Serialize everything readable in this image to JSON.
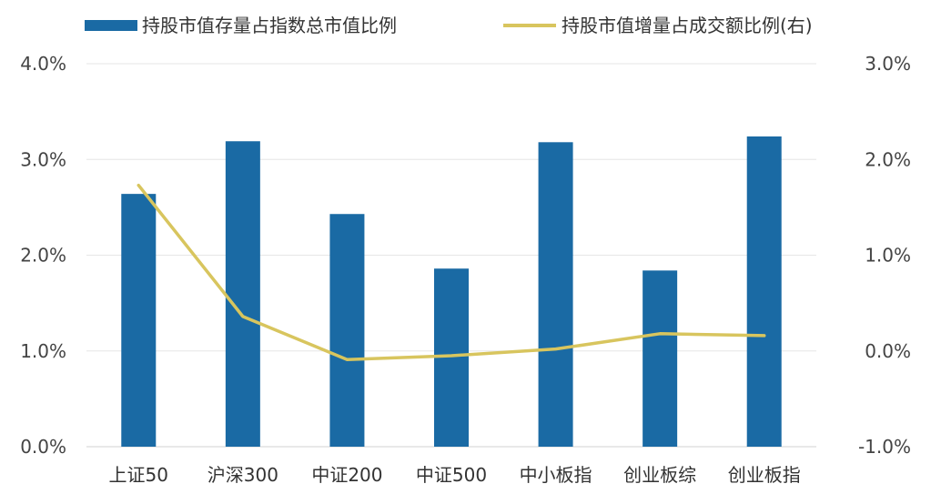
{
  "chart_data": {
    "type": "bar",
    "categories": [
      "上证50",
      "沪深300",
      "中证200",
      "中证500",
      "中小板指",
      "创业板综",
      "创业板指"
    ],
    "series": [
      {
        "name": "持股市值存量占指数总市值比例",
        "type": "bar",
        "axis": "left",
        "color": "#1a6aa4",
        "values": [
          0.0264,
          0.0319,
          0.0243,
          0.0186,
          0.0318,
          0.0184,
          0.0324
        ]
      },
      {
        "name": "持股市值增量占成交额比例(右)",
        "type": "line",
        "axis": "right",
        "color": "#d8c55e",
        "values": [
          0.0173,
          0.0036,
          -0.0009,
          -0.0005,
          0.0002,
          0.0018,
          0.0016
        ]
      }
    ],
    "y_left": {
      "min": 0.0,
      "max": 0.04,
      "ticks": [
        "0.0%",
        "1.0%",
        "2.0%",
        "3.0%",
        "4.0%"
      ]
    },
    "y_right": {
      "min": -0.01,
      "max": 0.03,
      "ticks": [
        "-1.0%",
        "0.0%",
        "1.0%",
        "2.0%",
        "3.0%"
      ]
    },
    "grid": true,
    "legend": "top"
  }
}
